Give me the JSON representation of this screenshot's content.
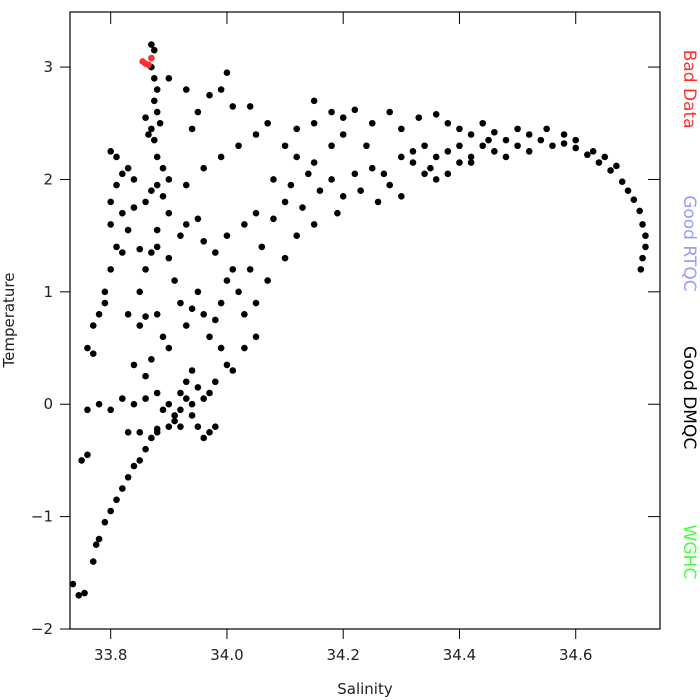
{
  "chart_data": {
    "type": "scatter",
    "xlabel": "Salinity",
    "ylabel": "Temperature",
    "xlim": [
      33.73,
      34.745
    ],
    "ylim": [
      -2,
      3.49
    ],
    "xticks": [
      33.8,
      {
        "value": 34,
        "label": "34.0"
      },
      34.2,
      34.4,
      34.6
    ],
    "yticks": [
      {
        "value": -2,
        "label": "−2"
      },
      {
        "value": -1,
        "label": "−1"
      },
      0,
      1,
      2,
      3
    ],
    "legend": "right",
    "series": [
      {
        "name": "Bad Data",
        "color": "#ff3030",
        "x": [
          33.855,
          33.86,
          33.865,
          33.87
        ],
        "values": [
          3.05,
          3.03,
          3.02,
          3.08
        ]
      },
      {
        "name": "Good RTQC",
        "color": "#9999ff",
        "x": [],
        "values": []
      },
      {
        "name": "Good DMQC",
        "color": "#000000",
        "x": [
          33.87,
          33.875,
          33.87,
          33.875,
          33.88,
          33.875,
          33.88,
          33.885,
          33.87,
          33.875,
          33.88,
          33.89,
          33.88,
          33.89,
          33.86,
          33.865,
          33.735,
          33.745,
          33.755,
          33.77,
          33.775,
          33.78,
          33.79,
          33.8,
          33.81,
          33.82,
          33.83,
          33.84,
          33.85,
          33.86,
          33.87,
          33.88,
          33.9,
          33.91,
          33.92,
          33.94,
          33.92,
          33.93,
          33.94,
          33.95,
          33.96,
          33.97,
          33.98,
          33.93,
          33.94,
          33.95,
          33.96,
          33.97,
          33.9,
          33.89,
          33.88,
          33.86,
          33.84,
          33.82,
          33.8,
          33.78,
          33.76,
          33.83,
          33.85,
          33.88,
          33.91,
          33.92,
          33.98,
          34.0,
          33.99,
          33.75,
          33.76,
          33.77,
          33.76,
          33.78,
          33.79,
          33.8,
          33.81,
          33.8,
          33.81,
          33.82,
          33.8,
          33.81,
          33.83,
          33.84,
          33.82,
          33.83,
          33.79,
          33.77,
          33.8,
          33.85,
          33.86,
          33.87,
          33.88,
          33.9,
          33.91,
          33.92,
          33.93,
          33.94,
          33.95,
          33.96,
          33.97,
          33.98,
          33.99,
          34.0,
          34.01,
          33.9,
          33.89,
          33.87,
          33.86,
          33.84,
          33.85,
          33.83,
          33.86,
          33.88,
          33.92,
          33.93,
          33.95,
          33.96,
          33.98,
          33.9,
          33.88,
          33.86,
          33.84,
          33.85,
          33.82,
          33.87,
          33.9,
          33.93,
          33.96,
          33.99,
          34.02,
          34.05,
          34.07,
          33.95,
          33.97,
          34.0,
          33.99,
          34.01,
          34.04,
          33.93,
          33.9,
          33.94,
          34.0,
          34.03,
          34.05,
          34.02,
          34.04,
          34.06,
          34.03,
          34.05,
          34.07,
          34.1,
          34.12,
          34.15,
          34.13,
          34.08,
          34.1,
          34.16,
          34.18,
          34.2,
          34.22,
          34.19,
          34.23,
          34.25,
          34.27,
          34.3,
          34.28,
          34.32,
          34.3,
          34.26,
          34.03,
          34.05,
          34.01,
          34.1,
          34.12,
          34.15,
          34.18,
          34.2,
          34.22,
          34.25,
          34.28,
          34.3,
          34.33,
          34.36,
          34.38,
          34.4,
          34.42,
          34.44,
          34.46,
          34.15,
          34.2,
          34.12,
          34.15,
          34.18,
          34.24,
          34.08,
          34.11,
          34.14,
          34.32,
          34.34,
          34.36,
          34.38,
          34.4,
          34.42,
          34.44,
          34.46,
          34.48,
          34.5,
          34.52,
          34.54,
          34.56,
          34.58,
          34.6,
          34.62,
          34.64,
          34.66,
          34.68,
          34.69,
          34.7,
          34.71,
          34.715,
          34.72,
          34.72,
          34.715,
          34.712,
          34.35,
          34.38,
          34.42,
          34.48,
          34.5,
          34.55,
          34.52,
          34.58,
          34.6,
          34.63,
          34.65,
          34.67,
          34.45,
          34.4,
          34.36,
          34.34
        ],
        "values": [
          3.2,
          3.15,
          3.0,
          2.9,
          2.8,
          2.7,
          2.6,
          2.5,
          2.45,
          2.35,
          2.2,
          2.1,
          1.95,
          1.85,
          2.55,
          2.4,
          -1.6,
          -1.7,
          -1.68,
          -1.4,
          -1.25,
          -1.2,
          -1.05,
          -0.95,
          -0.85,
          -0.75,
          -0.65,
          -0.55,
          -0.5,
          -0.4,
          -0.3,
          -0.25,
          -0.2,
          -0.1,
          -0.05,
          0,
          0.1,
          0.05,
          -0.1,
          -0.2,
          -0.3,
          -0.25,
          -0.2,
          0.2,
          0.3,
          0.15,
          0.05,
          0.1,
          0.0,
          -0.05,
          0.1,
          0.05,
          0.0,
          0.05,
          -0.05,
          0.0,
          -0.05,
          -0.25,
          -0.25,
          -0.22,
          -0.15,
          -0.2,
          0.2,
          0.35,
          0.5,
          -0.5,
          -0.45,
          0.45,
          0.5,
          0.8,
          1.0,
          1.2,
          1.4,
          1.8,
          1.95,
          2.05,
          2.25,
          2.2,
          2.1,
          2.0,
          1.7,
          1.55,
          0.9,
          0.7,
          1.6,
          1.0,
          1.2,
          1.35,
          1.4,
          1.3,
          1.1,
          0.9,
          0.7,
          0.85,
          1.0,
          0.8,
          0.6,
          0.75,
          0.9,
          1.1,
          1.2,
          0.5,
          0.6,
          0.4,
          0.25,
          0.35,
          0.7,
          0.8,
          0.78,
          0.8,
          1.5,
          1.6,
          1.65,
          1.45,
          1.35,
          1.7,
          1.55,
          1.8,
          1.75,
          1.38,
          1.35,
          1.9,
          2.0,
          1.95,
          2.1,
          2.2,
          2.3,
          2.4,
          2.5,
          2.6,
          2.75,
          2.95,
          2.8,
          2.65,
          2.65,
          2.8,
          2.9,
          2.45,
          1.5,
          1.6,
          1.7,
          1.0,
          1.2,
          1.4,
          0.8,
          0.9,
          1.1,
          1.3,
          1.5,
          1.6,
          1.75,
          1.65,
          1.8,
          1.9,
          2.0,
          1.85,
          2.05,
          1.7,
          1.9,
          2.1,
          2.05,
          2.2,
          1.95,
          2.15,
          1.85,
          1.8,
          0.5,
          0.6,
          0.3,
          2.3,
          2.45,
          2.5,
          2.6,
          2.55,
          2.62,
          2.5,
          2.6,
          2.45,
          2.55,
          2.58,
          2.5,
          2.45,
          2.4,
          2.5,
          2.42,
          2.7,
          2.4,
          2.2,
          2.15,
          2.3,
          2.3,
          2.0,
          1.95,
          2.05,
          2.25,
          2.3,
          2.2,
          2.25,
          2.3,
          2.2,
          2.3,
          2.25,
          2.35,
          2.3,
          2.4,
          2.35,
          2.3,
          2.32,
          2.28,
          2.22,
          2.15,
          2.08,
          1.98,
          1.9,
          1.82,
          1.72,
          1.6,
          1.5,
          1.4,
          1.3,
          1.2,
          2.1,
          2.05,
          2.15,
          2.2,
          2.45,
          2.45,
          2.25,
          2.4,
          2.35,
          2.25,
          2.2,
          2.12,
          2.35,
          2.15,
          2.0,
          2.05
        ]
      },
      {
        "name": "WGHC",
        "color": "#44ff44",
        "x": [],
        "values": []
      }
    ]
  }
}
